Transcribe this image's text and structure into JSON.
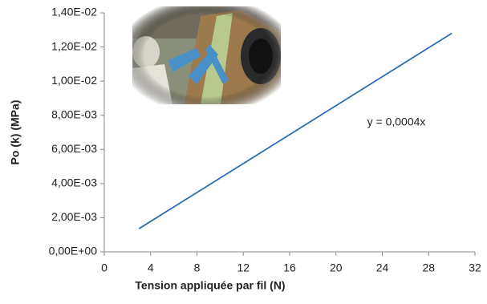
{
  "chart_data": {
    "type": "line",
    "x_label": "Tension appliquée par fil (N)",
    "y_label": "Po (k) (MPa)",
    "annotation": "y = 0,0004x",
    "x": [
      3,
      30
    ],
    "series": [
      {
        "color": "#2e6db4",
        "values": [
          0.00136,
          0.0128
        ]
      }
    ],
    "xlim": [
      0,
      32
    ],
    "xticks": [
      0,
      4,
      8,
      12,
      16,
      20,
      24,
      28,
      32
    ],
    "ylim": [
      0,
      0.014
    ],
    "yticks": [
      {
        "value": 0,
        "label": "0,00E+00"
      },
      {
        "value": 0.002,
        "label": "2,00E-03"
      },
      {
        "value": 0.004,
        "label": "4,00E-03"
      },
      {
        "value": 0.006,
        "label": "6,00E-03"
      },
      {
        "value": 0.008,
        "label": "8,00E-03"
      },
      {
        "value": 0.01,
        "label": "1,00E-02"
      },
      {
        "value": 0.012,
        "label": "1,20E-02"
      },
      {
        "value": 0.014,
        "label": "1,40E-02"
      }
    ],
    "grid": false
  }
}
